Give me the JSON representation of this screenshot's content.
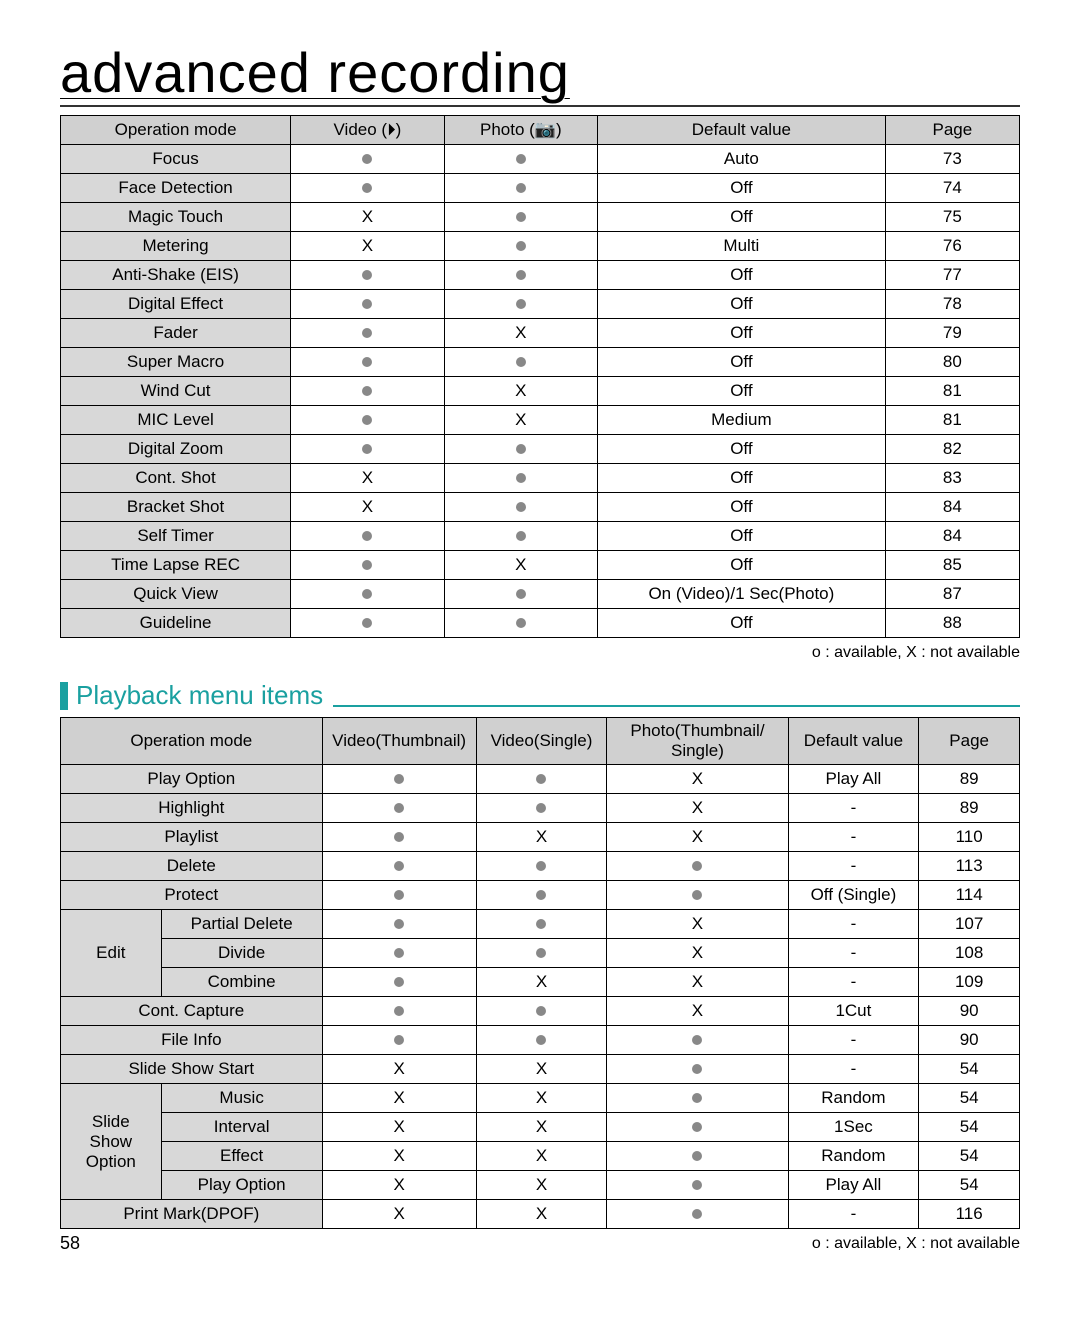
{
  "page_number": "58",
  "title": "advanced recording",
  "legend": "o : available, X : not available",
  "section2_title": "Playback menu items",
  "table1": {
    "columns": [
      "Operation mode",
      "Video (⏵)",
      "Photo (📷)",
      "Default value",
      "Page"
    ],
    "col_widths": [
      "24%",
      "16%",
      "16%",
      "30%",
      "14%"
    ],
    "rows": [
      [
        "Focus",
        "dot",
        "dot",
        "Auto",
        "73"
      ],
      [
        "Face Detection",
        "dot",
        "dot",
        "Off",
        "74"
      ],
      [
        "Magic Touch",
        "X",
        "dot",
        "Off",
        "75"
      ],
      [
        "Metering",
        "X",
        "dot",
        "Multi",
        "76"
      ],
      [
        "Anti-Shake (EIS)",
        "dot",
        "dot",
        "Off",
        "77"
      ],
      [
        "Digital Effect",
        "dot",
        "dot",
        "Off",
        "78"
      ],
      [
        "Fader",
        "dot",
        "X",
        "Off",
        "79"
      ],
      [
        "Super Macro",
        "dot",
        "dot",
        "Off",
        "80"
      ],
      [
        "Wind Cut",
        "dot",
        "X",
        "Off",
        "81"
      ],
      [
        "MIC Level",
        "dot",
        "X",
        "Medium",
        "81"
      ],
      [
        "Digital Zoom",
        "dot",
        "dot",
        "Off",
        "82"
      ],
      [
        "Cont. Shot",
        "X",
        "dot",
        "Off",
        "83"
      ],
      [
        "Bracket Shot",
        "X",
        "dot",
        "Off",
        "84"
      ],
      [
        "Self Timer",
        "dot",
        "dot",
        "Off",
        "84"
      ],
      [
        "Time Lapse REC",
        "dot",
        "X",
        "Off",
        "85"
      ],
      [
        "Quick View",
        "dot",
        "dot",
        "On (Video)/1 Sec(Photo)",
        "87"
      ],
      [
        "Guideline",
        "dot",
        "dot",
        "Off",
        "88"
      ]
    ]
  },
  "table2": {
    "columns": [
      "Operation mode",
      "Video(Thumbnail)",
      "Video(Single)",
      "Photo(Thumbnail/ Single)",
      "Default value",
      "Page"
    ],
    "col_widths": [
      "26%",
      "15%",
      "13%",
      "18%",
      "13%",
      "10%"
    ],
    "simple_rows": [
      {
        "label": "Play Option",
        "cells": [
          "dot",
          "dot",
          "X",
          "Play All",
          "89"
        ]
      },
      {
        "label": "Highlight",
        "cells": [
          "dot",
          "dot",
          "X",
          "-",
          "89"
        ]
      },
      {
        "label": "Playlist",
        "cells": [
          "dot",
          "X",
          "X",
          "-",
          "110"
        ]
      },
      {
        "label": "Delete",
        "cells": [
          "dot",
          "dot",
          "dot",
          "-",
          "113"
        ]
      },
      {
        "label": "Protect",
        "cells": [
          "dot",
          "dot",
          "dot",
          "Off (Single)",
          "114"
        ]
      }
    ],
    "edit_group": {
      "label": "Edit",
      "rows": [
        {
          "sub": "Partial Delete",
          "cells": [
            "dot",
            "dot",
            "X",
            "-",
            "107"
          ]
        },
        {
          "sub": "Divide",
          "cells": [
            "dot",
            "dot",
            "X",
            "-",
            "108"
          ]
        },
        {
          "sub": "Combine",
          "cells": [
            "dot",
            "X",
            "X",
            "-",
            "109"
          ]
        }
      ]
    },
    "simple_rows2": [
      {
        "label": "Cont. Capture",
        "cells": [
          "dot",
          "dot",
          "X",
          "1Cut",
          "90"
        ]
      },
      {
        "label": "File Info",
        "cells": [
          "dot",
          "dot",
          "dot",
          "-",
          "90"
        ]
      },
      {
        "label": "Slide Show Start",
        "cells": [
          "X",
          "X",
          "dot",
          "-",
          "54"
        ]
      }
    ],
    "slide_group": {
      "label": "Slide Show Option",
      "rows": [
        {
          "sub": "Music",
          "cells": [
            "X",
            "X",
            "dot",
            "Random",
            "54"
          ]
        },
        {
          "sub": "Interval",
          "cells": [
            "X",
            "X",
            "dot",
            "1Sec",
            "54"
          ]
        },
        {
          "sub": "Effect",
          "cells": [
            "X",
            "X",
            "dot",
            "Random",
            "54"
          ]
        },
        {
          "sub": "Play Option",
          "cells": [
            "X",
            "X",
            "dot",
            "Play All",
            "54"
          ]
        }
      ]
    },
    "simple_rows3": [
      {
        "label": "Print Mark(DPOF)",
        "cells": [
          "X",
          "X",
          "dot",
          "-",
          "116"
        ]
      }
    ]
  }
}
